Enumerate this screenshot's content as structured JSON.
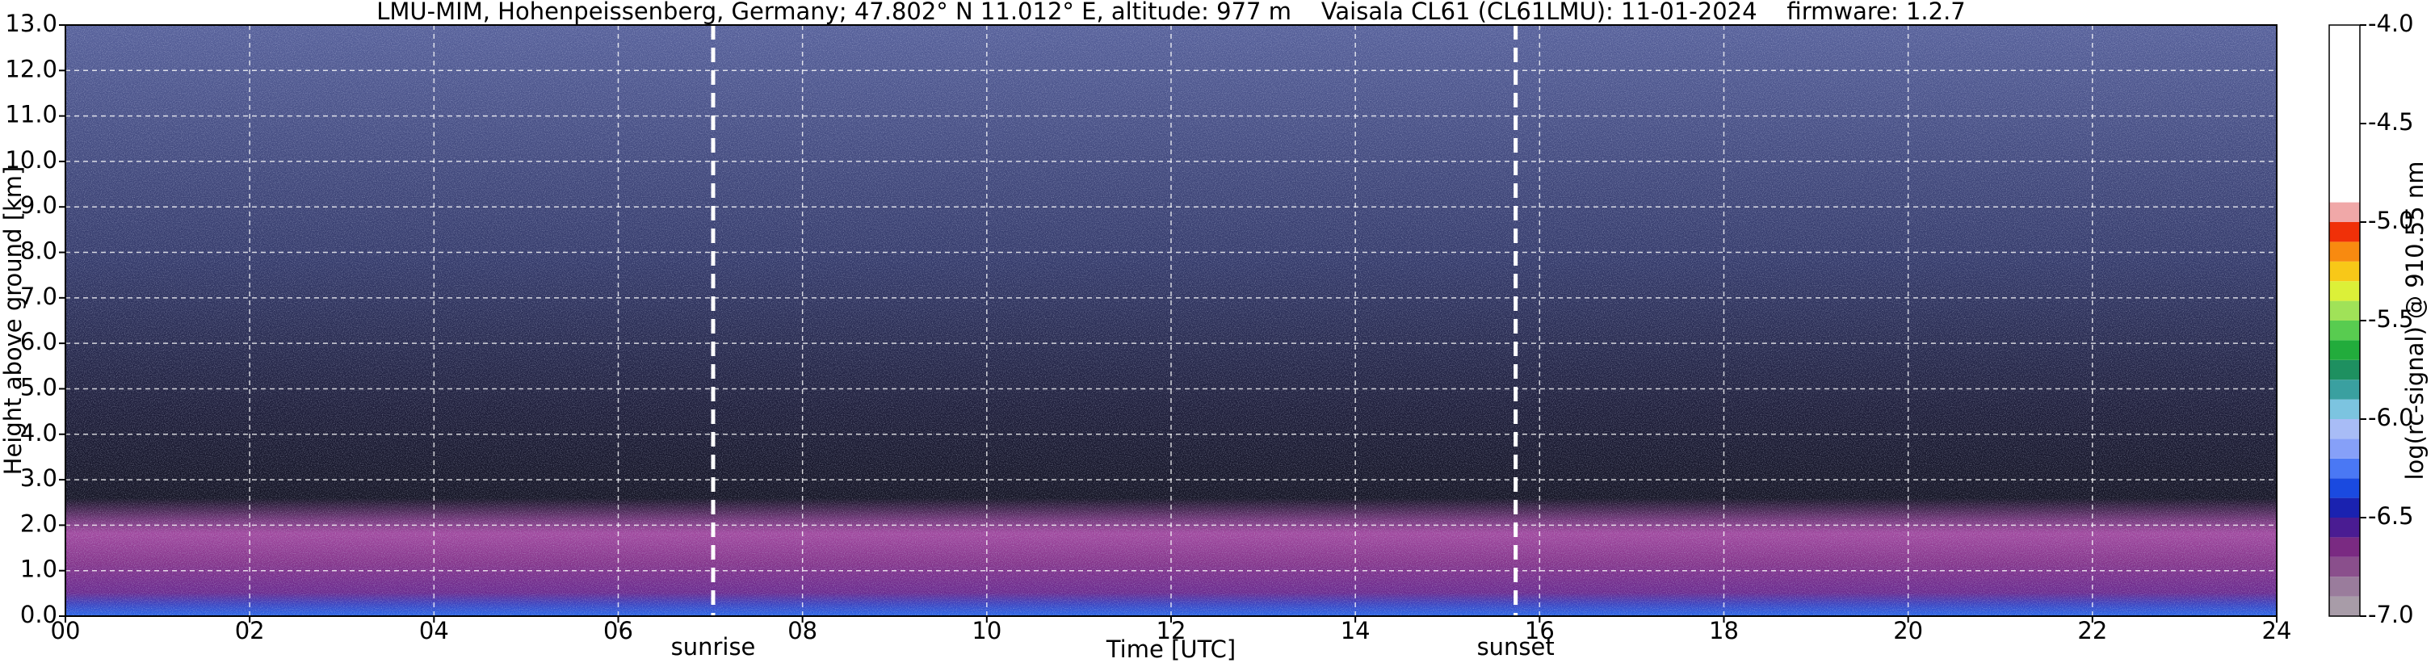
{
  "chart_data": {
    "type": "heatmap",
    "title": "LMU-MIM, Hohenpeissenberg, Germany; 47.802° N 11.012° E, altitude: 977 m    Vaisala CL61 (CL61LMU): 11-01-2024    firmware: 1.2.7",
    "x_label": "Time [UTC]",
    "y_label": "Height above ground [km]",
    "xlim": [
      0,
      24
    ],
    "xticks": [
      {
        "value": 0,
        "label": "00"
      },
      {
        "value": 2,
        "label": "02"
      },
      {
        "value": 4,
        "label": "04"
      },
      {
        "value": 6,
        "label": "06"
      },
      {
        "value": 8,
        "label": "08"
      },
      10,
      12,
      14,
      16,
      18,
      20,
      22,
      24
    ],
    "ylim": [
      0,
      13
    ],
    "yticks": [
      {
        "value": 0,
        "label": "0.0"
      },
      {
        "value": 1,
        "label": "1.0"
      },
      {
        "value": 2,
        "label": "2.0"
      },
      {
        "value": 3,
        "label": "3.0"
      },
      {
        "value": 4,
        "label": "4.0"
      },
      {
        "value": 5,
        "label": "5.0"
      },
      {
        "value": 6,
        "label": "6.0"
      },
      {
        "value": 7,
        "label": "7.0"
      },
      {
        "value": 8,
        "label": "8.0"
      },
      {
        "value": 9,
        "label": "9.0"
      },
      {
        "value": 10,
        "label": "10.0"
      },
      {
        "value": 11,
        "label": "11.0"
      },
      {
        "value": 12,
        "label": "12.0"
      },
      {
        "value": 13,
        "label": "13.0"
      }
    ],
    "grid": true,
    "annotations": [
      {
        "text": "sunrise",
        "x": 7.03
      },
      {
        "text": "sunset",
        "x": 15.74
      }
    ],
    "colorbar": {
      "label": "log(rc-signal) @ 910.55 nm",
      "lim": [
        -7,
        -4
      ],
      "ticks": [
        {
          "value": -7,
          "label": "-7.0"
        },
        {
          "value": -6.5,
          "label": "-6.5"
        },
        {
          "value": -6,
          "label": "-6.0"
        },
        {
          "value": -5.5,
          "label": "-5.5"
        },
        {
          "value": -5,
          "label": "-5.0"
        },
        {
          "value": -4.5,
          "label": "-4.5"
        },
        {
          "value": -4,
          "label": "-4.0"
        }
      ],
      "bounds": [
        -7.0,
        -6.9,
        -6.8,
        -6.7,
        -6.6,
        -6.5,
        -6.4,
        -6.3,
        -6.2,
        -6.1,
        -6.0,
        -5.9,
        -5.8,
        -5.7,
        -5.6,
        -5.5,
        -5.4,
        -5.3,
        -5.2,
        -5.1,
        -5.0,
        -4.9
      ],
      "colors": [
        "#a89ca8",
        "#9a7c9c",
        "#8a4f8c",
        "#7a2a82",
        "#4a1c92",
        "#1a22b0",
        "#1a4ae0",
        "#4a78f4",
        "#86a0f8",
        "#a8bcf6",
        "#7cc4e0",
        "#3aa0a0",
        "#1e9060",
        "#22ac3c",
        "#58cc50",
        "#a0e258",
        "#dcf038",
        "#f8c818",
        "#f88a10",
        "#f03008",
        "#f0a8a8",
        "#f2d6d6"
      ]
    }
  }
}
